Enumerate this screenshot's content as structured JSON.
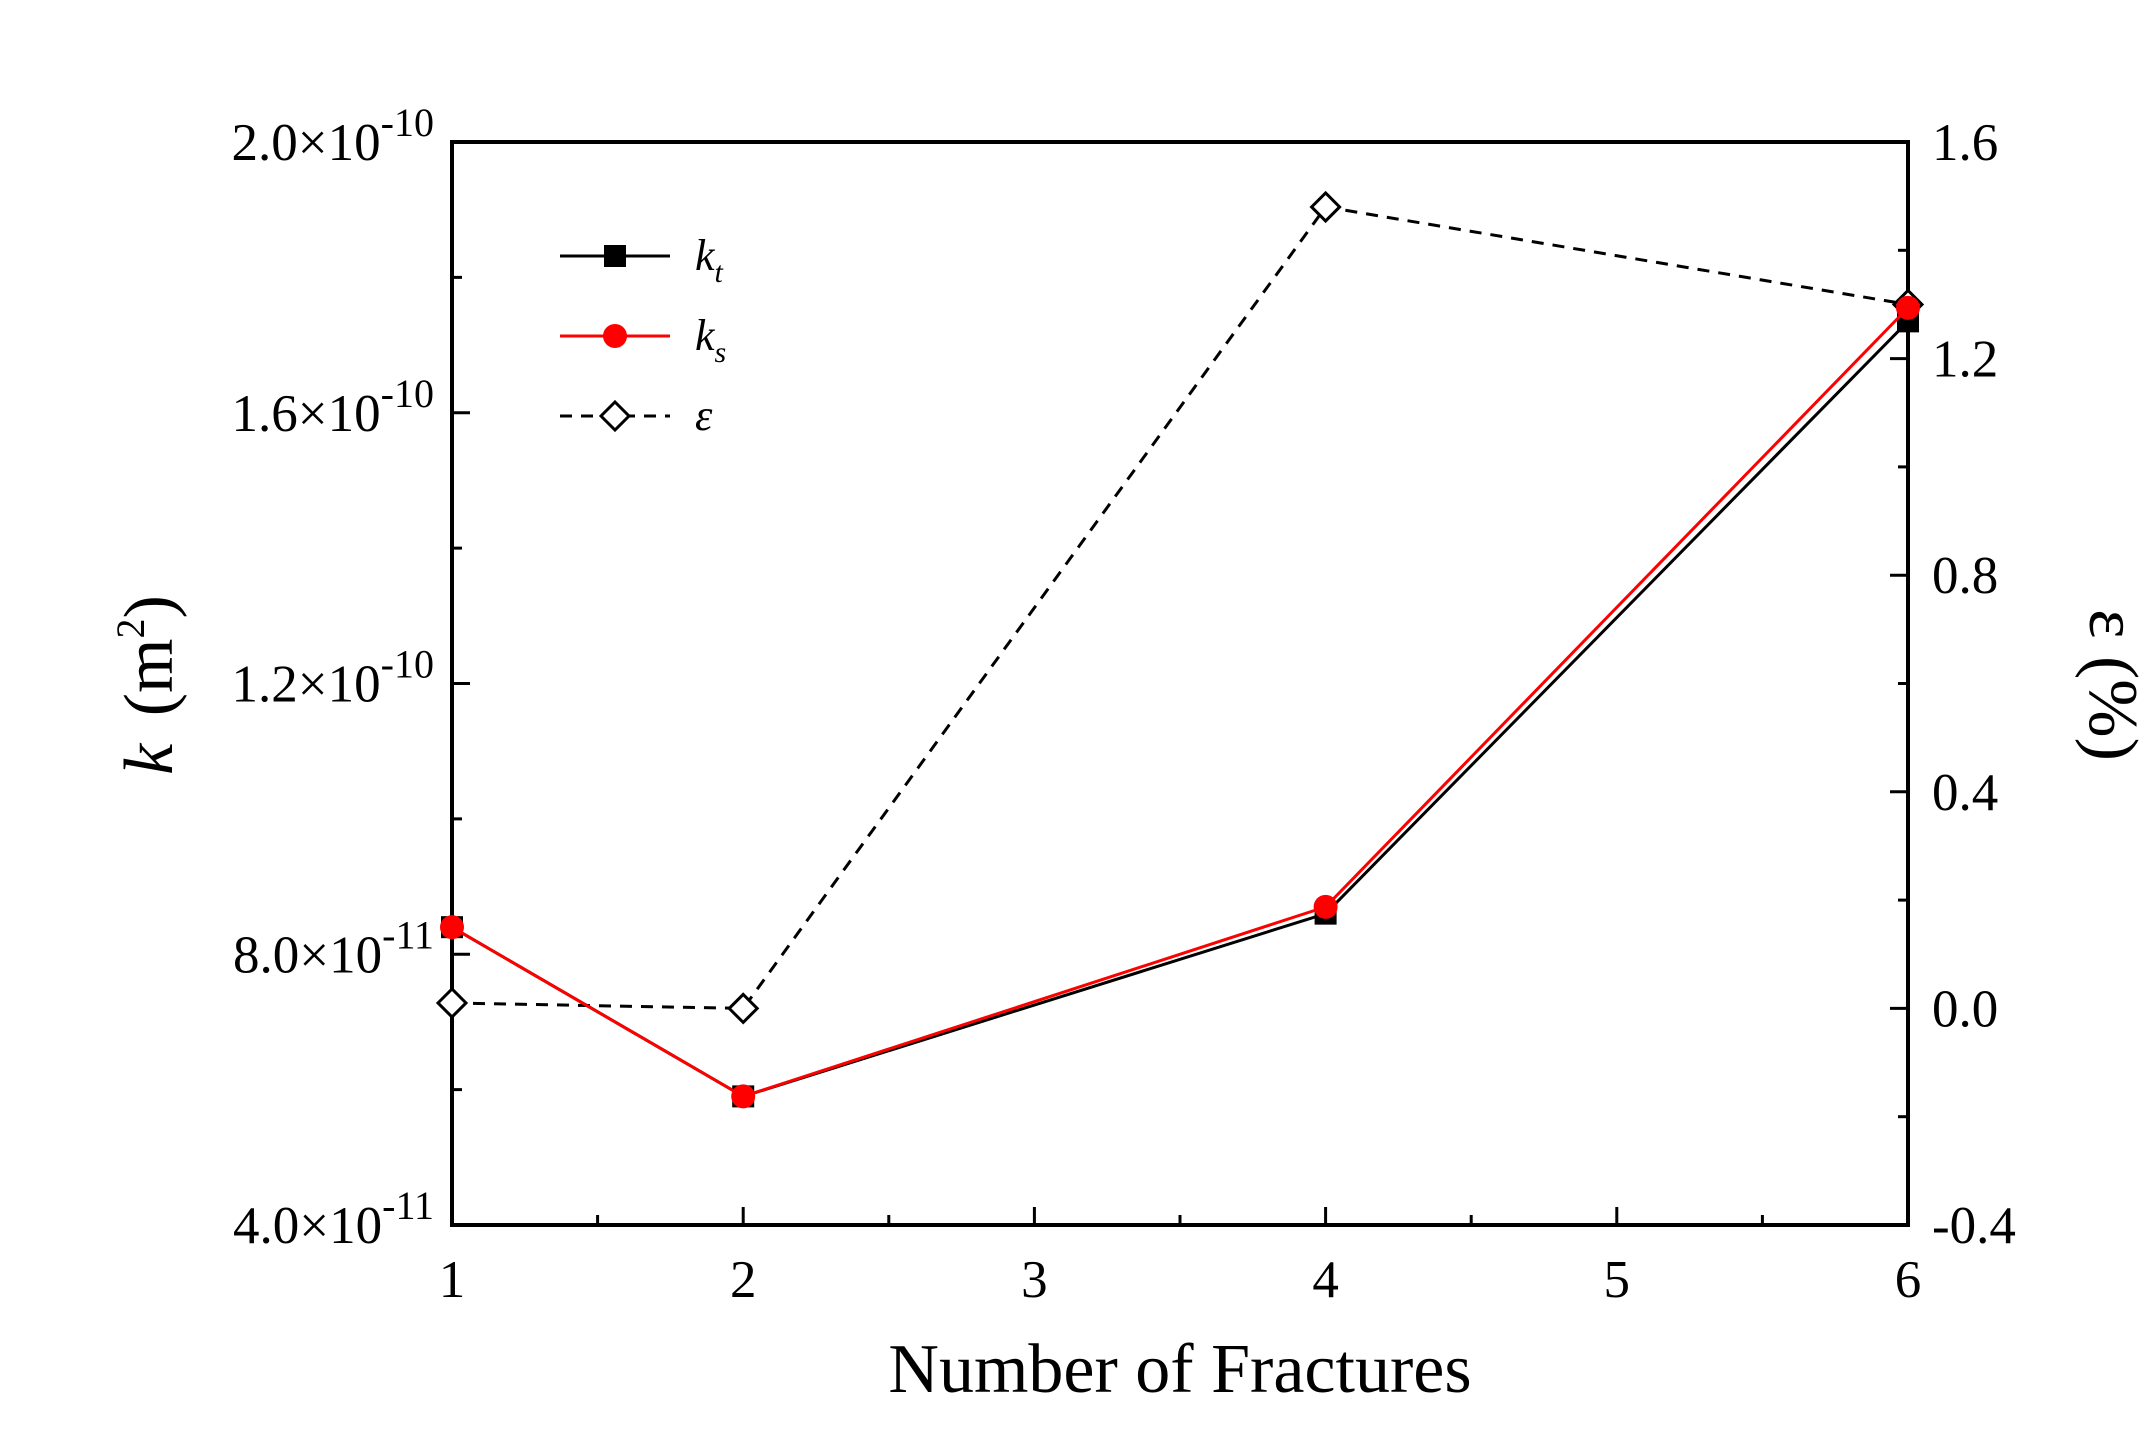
{
  "chart_data": {
    "type": "line",
    "xlabel": "Number of Fractures",
    "x_ticks": [
      "1",
      "2",
      "3",
      "4",
      "5",
      "6"
    ],
    "xlim": [
      1,
      6
    ],
    "left_axis": {
      "label_symbol": "k",
      "label_unit": "(m",
      "label_unit_sup": "2",
      "label_unit_close": ")",
      "ylim": [
        4e-11,
        2e-10
      ],
      "ticks": [
        {
          "value": 4e-11,
          "mantissa": "4.0×10",
          "exp": "-11"
        },
        {
          "value": 8e-11,
          "mantissa": "8.0×10",
          "exp": "-11"
        },
        {
          "value": 1.2e-10,
          "mantissa": "1.2×10",
          "exp": "-10"
        },
        {
          "value": 1.6e-10,
          "mantissa": "1.6×10",
          "exp": "-10"
        },
        {
          "value": 2e-10,
          "mantissa": "2.0×10",
          "exp": "-10"
        }
      ]
    },
    "right_axis": {
      "label": "ε (%)",
      "ylim": [
        -0.4,
        1.6
      ],
      "ticks": [
        "-0.4",
        "0.0",
        "0.4",
        "0.8",
        "1.2",
        "1.6"
      ]
    },
    "series": [
      {
        "name": "k",
        "name_sub": "t",
        "axis": "left",
        "color": "#000000",
        "marker": "square",
        "dash": false,
        "x": [
          1,
          2,
          4,
          6
        ],
        "values": [
          8.4e-11,
          5.9e-11,
          8.6e-11,
          1.735e-10
        ]
      },
      {
        "name": "k",
        "name_sub": "s",
        "axis": "left",
        "color": "#ff0000",
        "marker": "circle",
        "dash": false,
        "x": [
          1,
          2,
          4,
          6
        ],
        "values": [
          8.4e-11,
          5.9e-11,
          8.7e-11,
          1.755e-10
        ]
      },
      {
        "name": "ε",
        "name_sub": "",
        "axis": "right",
        "color": "#000000",
        "marker": "diamond-open",
        "dash": true,
        "x": [
          1,
          2,
          4,
          6
        ],
        "values": [
          0.01,
          0.0,
          1.48,
          1.3
        ]
      }
    ],
    "legend_position": "top-left",
    "grid": false
  }
}
